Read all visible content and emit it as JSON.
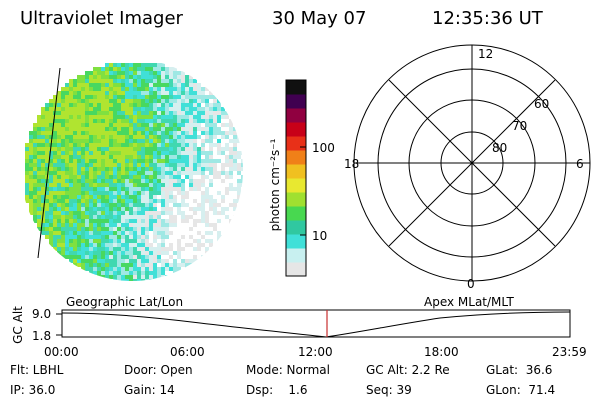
{
  "header": {
    "instrument": "Ultraviolet Imager",
    "date": "30 May 07",
    "time": "12:35:36 UT"
  },
  "colorbar": {
    "unit_label": "photon cm⁻²s⁻¹",
    "ticks": [
      "100",
      "10"
    ],
    "scale": "log",
    "colors": [
      "#e6e6e6",
      "#c8f0f0",
      "#40e0d8",
      "#30c8a0",
      "#48d850",
      "#a0e030",
      "#e8e830",
      "#f0c020",
      "#f08018",
      "#e83018",
      "#c80018",
      "#900040",
      "#400050",
      "#101010"
    ]
  },
  "polar_plot": {
    "mlt_labels": [
      "12",
      "18",
      "6",
      "0"
    ],
    "mlat_labels": [
      "60",
      "70",
      "80"
    ]
  },
  "timeline": {
    "left_title": "Geographic Lat/Lon",
    "right_title": "Apex MLat/MLT",
    "y_axis_label": "GC Alt",
    "y_ticks": [
      "9.0",
      "1.8"
    ],
    "x_ticks": [
      "00:00",
      "06:00",
      "12:00",
      "18:00",
      "23:59"
    ],
    "current_marker_color": "#c83030"
  },
  "status": {
    "flt": "Flt: LBHL",
    "door": "Door: Open",
    "mode": "Mode: Normal",
    "gc_alt": "GC Alt: 2.2 Re",
    "glat": "GLat:  36.6",
    "ip": "IP: 36.0",
    "gain": "Gain: 14",
    "dsp": "Dsp:    1.6",
    "seq": "Seq: 39",
    "glon": "GLon:  71.4"
  }
}
